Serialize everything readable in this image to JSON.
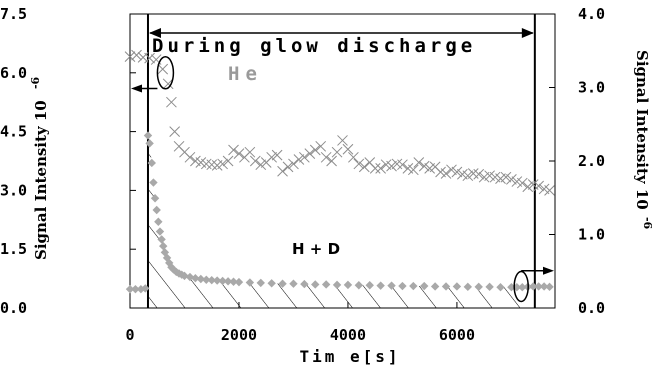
{
  "chart_data": {
    "type": "scatter",
    "xlabel": "Tim e[s]",
    "ylabel_left": "Signal Intensity 10",
    "ylabel_left_exp": "-6",
    "ylabel_right": "Signal Intensity 10",
    "ylabel_right_exp": "-6",
    "xlim": [
      0,
      7800
    ],
    "ylim_left": [
      0,
      7.5
    ],
    "ylim_right": [
      0,
      4.0
    ],
    "x_ticks": [
      "0",
      "2000",
      "4000",
      "6000"
    ],
    "x_tick_values": [
      0,
      2000,
      4000,
      6000
    ],
    "y_left_ticks": [
      "0.0",
      "1.5",
      "3.0",
      "4.5",
      "6.0",
      "7.5"
    ],
    "y_left_tick_values": [
      0,
      1.5,
      3.0,
      4.5,
      6.0,
      7.5
    ],
    "y_right_ticks": [
      "0.0",
      "1.0",
      "2.0",
      "3.0",
      "4.0"
    ],
    "y_right_tick_values": [
      0,
      1.0,
      2.0,
      3.0,
      4.0
    ],
    "annotations": {
      "discharge": "During glow discharge",
      "he_label": "He",
      "hd_label": "H + D"
    },
    "discharge_interval": [
      330,
      7430
    ],
    "series": [
      {
        "name": "He",
        "axis": "right",
        "marker": "x",
        "color": "#8c8c8c",
        "x": [
          0,
          120,
          240,
          360,
          480,
          600,
          700,
          760,
          820,
          900,
          1000,
          1100,
          1200,
          1300,
          1400,
          1500,
          1600,
          1700,
          1800,
          1900,
          2000,
          2100,
          2200,
          2300,
          2400,
          2500,
          2600,
          2700,
          2800,
          2900,
          3000,
          3100,
          3200,
          3300,
          3400,
          3500,
          3600,
          3700,
          3800,
          3900,
          4000,
          4100,
          4200,
          4300,
          4400,
          4500,
          4600,
          4700,
          4800,
          4900,
          5000,
          5100,
          5200,
          5300,
          5400,
          5500,
          5600,
          5700,
          5800,
          5900,
          6000,
          6100,
          6200,
          6300,
          6400,
          6500,
          6600,
          6700,
          6800,
          6900,
          7000,
          7100,
          7200,
          7300,
          7400,
          7500,
          7600,
          7700
        ],
        "y": [
          3.42,
          3.44,
          3.41,
          3.4,
          3.38,
          3.25,
          3.05,
          2.8,
          2.4,
          2.2,
          2.12,
          2.05,
          2.0,
          1.98,
          1.96,
          1.95,
          1.94,
          1.96,
          2.0,
          2.15,
          2.1,
          2.05,
          2.12,
          2.0,
          1.95,
          1.98,
          2.05,
          2.08,
          1.86,
          1.92,
          1.96,
          2.02,
          2.05,
          2.1,
          2.15,
          2.2,
          2.05,
          2.0,
          2.12,
          2.28,
          2.16,
          2.05,
          1.96,
          1.92,
          1.98,
          1.9,
          1.9,
          1.95,
          1.93,
          1.96,
          1.95,
          1.9,
          1.88,
          1.98,
          1.93,
          1.9,
          1.92,
          1.85,
          1.83,
          1.88,
          1.85,
          1.82,
          1.8,
          1.83,
          1.82,
          1.78,
          1.8,
          1.78,
          1.76,
          1.78,
          1.75,
          1.72,
          1.7,
          1.65,
          1.68,
          1.66,
          1.62,
          1.6
        ]
      },
      {
        "name": "H + D",
        "axis": "left",
        "marker": "diamond",
        "color": "#a9a9a9",
        "x": [
          0,
          100,
          200,
          280,
          330,
          360,
          400,
          430,
          460,
          490,
          520,
          550,
          580,
          610,
          640,
          680,
          720,
          760,
          800,
          850,
          900,
          950,
          1000,
          1100,
          1200,
          1300,
          1400,
          1500,
          1600,
          1700,
          1800,
          1900,
          2000,
          2200,
          2400,
          2600,
          2800,
          3000,
          3200,
          3400,
          3600,
          3800,
          4000,
          4200,
          4400,
          4600,
          4800,
          5000,
          5200,
          5400,
          5600,
          5800,
          6000,
          6200,
          6400,
          6600,
          6800,
          7000,
          7100,
          7200,
          7300,
          7400,
          7500,
          7600,
          7700
        ],
        "y": [
          0.48,
          0.48,
          0.48,
          0.5,
          4.4,
          4.2,
          3.7,
          3.2,
          2.8,
          2.5,
          2.2,
          1.95,
          1.75,
          1.58,
          1.42,
          1.28,
          1.15,
          1.04,
          0.98,
          0.92,
          0.88,
          0.85,
          0.82,
          0.79,
          0.76,
          0.74,
          0.72,
          0.71,
          0.7,
          0.69,
          0.68,
          0.67,
          0.66,
          0.65,
          0.64,
          0.63,
          0.62,
          0.62,
          0.61,
          0.6,
          0.6,
          0.59,
          0.59,
          0.58,
          0.58,
          0.57,
          0.57,
          0.56,
          0.56,
          0.56,
          0.55,
          0.55,
          0.55,
          0.54,
          0.54,
          0.54,
          0.53,
          0.53,
          0.53,
          0.53,
          0.54,
          0.55,
          0.55,
          0.55,
          0.54
        ]
      }
    ]
  }
}
